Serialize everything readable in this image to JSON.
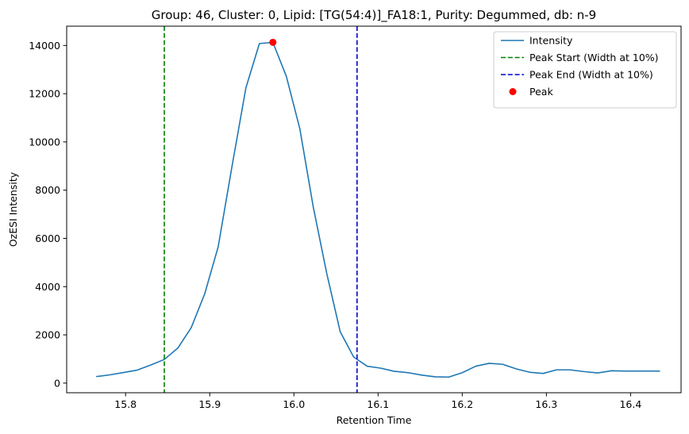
{
  "chart_data": {
    "type": "line",
    "title": "Group: 46, Cluster: 0, Lipid: [TG(54:4)]_FA18:1, Purity: Degummed, db: n-9",
    "xlabel": "Retention Time",
    "ylabel": "OzESI Intensity",
    "xlim": [
      15.73,
      16.46
    ],
    "ylim": [
      -400,
      14800
    ],
    "xticks": [
      15.8,
      15.9,
      16.0,
      16.1,
      16.2,
      16.3,
      16.4
    ],
    "xtick_labels": [
      "15.8",
      "15.9",
      "16.0",
      "16.1",
      "16.2",
      "16.3",
      "16.4"
    ],
    "yticks": [
      0,
      2000,
      4000,
      6000,
      8000,
      10000,
      12000,
      14000
    ],
    "ytick_labels": [
      "0",
      "2000",
      "4000",
      "6000",
      "8000",
      "10000",
      "12000",
      "14000"
    ],
    "grid": false,
    "legend_position": "top-right",
    "series": [
      {
        "name": "Intensity",
        "color": "#1f77b4",
        "style": "solid",
        "x": [
          15.765,
          15.781,
          15.798,
          15.814,
          15.83,
          15.846,
          15.862,
          15.878,
          15.894,
          15.91,
          15.927,
          15.943,
          15.959,
          15.975,
          15.991,
          16.007,
          16.023,
          16.039,
          16.055,
          16.071,
          16.087,
          16.103,
          16.119,
          16.136,
          16.152,
          16.168,
          16.184,
          16.2,
          16.216,
          16.232,
          16.248,
          16.264,
          16.28,
          16.296,
          16.312,
          16.328,
          16.344,
          16.361,
          16.377,
          16.393,
          16.409,
          16.425,
          16.435
        ],
        "y": [
          270,
          340,
          440,
          540,
          750,
          980,
          1450,
          2300,
          3700,
          5650,
          9100,
          12250,
          14080,
          14130,
          12720,
          10550,
          7300,
          4550,
          2130,
          1080,
          700,
          620,
          490,
          430,
          330,
          260,
          250,
          430,
          700,
          820,
          780,
          590,
          450,
          400,
          550,
          550,
          480,
          420,
          510,
          500,
          500,
          500,
          500
        ]
      },
      {
        "name": "Peak Start (Width at 10%)",
        "color": "#008000",
        "style": "dashed",
        "vline_x": 15.846
      },
      {
        "name": "Peak End (Width at 10%)",
        "color": "#0000cc",
        "style": "dashed",
        "vline_x": 16.075
      },
      {
        "name": "Peak",
        "color": "#ff0000",
        "style": "marker",
        "x": [
          15.975
        ],
        "y": [
          14130
        ]
      }
    ]
  }
}
